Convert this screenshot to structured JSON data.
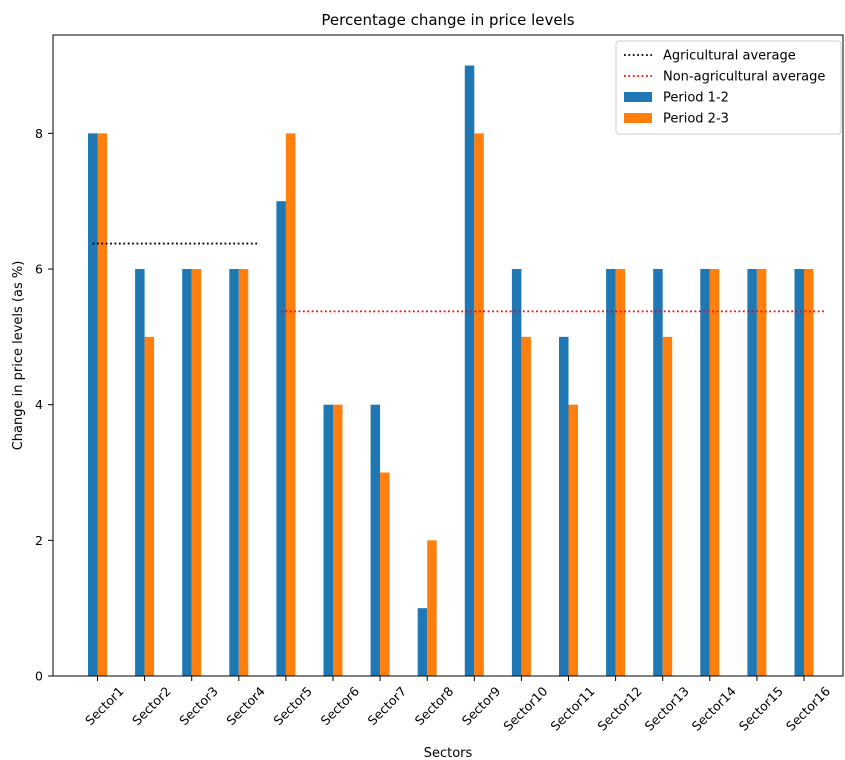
{
  "chart_data": {
    "type": "bar",
    "title": "Percentage change in price levels",
    "xlabel": "Sectors",
    "ylabel": "Change in price levels (as %)",
    "categories": [
      "Sector1",
      "Sector2",
      "Sector3",
      "Sector4",
      "Sector5",
      "Sector6",
      "Sector7",
      "Sector8",
      "Sector9",
      "Sector10",
      "Sector11",
      "Sector12",
      "Sector13",
      "Sector14",
      "Sector15",
      "Sector16"
    ],
    "series": [
      {
        "name": "Period 1-2",
        "color": "#1f77b4",
        "values": [
          8,
          6,
          6,
          6,
          7,
          4,
          4,
          1,
          9,
          6,
          5,
          6,
          6,
          6,
          6,
          6
        ]
      },
      {
        "name": "Period 2-3",
        "color": "#ff7f0e",
        "values": [
          8,
          5,
          6,
          6,
          8,
          4,
          3,
          2,
          8,
          5,
          4,
          6,
          5,
          6,
          6,
          6
        ]
      }
    ],
    "reference_lines": [
      {
        "name": "Agricultural average",
        "color": "#000000",
        "style": "dotted",
        "value": 6.375,
        "from_category": "Sector1",
        "to_category": "Sector4"
      },
      {
        "name": "Non-agricultural average",
        "color": "#ff0000",
        "style": "dotted",
        "value": 5.375,
        "from_category": "Sector5",
        "to_category": "Sector16"
      }
    ],
    "ylim": [
      0,
      9.45
    ],
    "yticks": [
      0,
      2,
      4,
      6,
      8
    ],
    "legend_position": "top-right",
    "grid": false
  }
}
